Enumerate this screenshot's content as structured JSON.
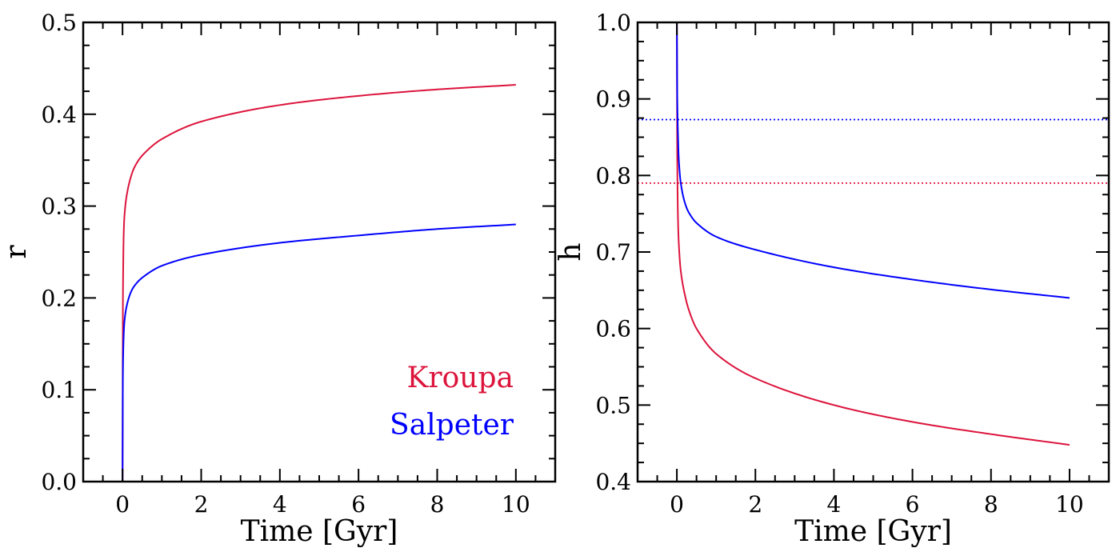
{
  "chart_data": [
    {
      "type": "line",
      "xlabel": "Time [Gyr]",
      "ylabel": "r",
      "xlim": [
        -1,
        11
      ],
      "ylim": [
        0.0,
        0.5
      ],
      "xticks": [
        "0",
        "2",
        "4",
        "6",
        "8",
        "10"
      ],
      "yticks": [
        "0.0",
        "0.1",
        "0.2",
        "0.3",
        "0.4",
        "0.5"
      ],
      "grid": false,
      "legend": {
        "placement": "bottom-right",
        "entries": [
          {
            "label": "Kroupa",
            "color": "#dc143c"
          },
          {
            "label": "Salpeter",
            "color": "#0000ff"
          }
        ]
      },
      "series": [
        {
          "name": "Kroupa",
          "color": "#dc143c",
          "style": "solid",
          "x": [
            0,
            0.01,
            0.03,
            0.05,
            0.1,
            0.2,
            0.3,
            0.5,
            1,
            2,
            4,
            6,
            8,
            10
          ],
          "y": [
            0.0,
            0.2,
            0.27,
            0.29,
            0.31,
            0.33,
            0.342,
            0.355,
            0.373,
            0.392,
            0.41,
            0.42,
            0.427,
            0.432
          ]
        },
        {
          "name": "Salpeter",
          "color": "#0000ff",
          "style": "solid",
          "x": [
            0,
            0.01,
            0.03,
            0.05,
            0.1,
            0.2,
            0.3,
            0.5,
            1,
            2,
            4,
            6,
            8,
            10
          ],
          "y": [
            0.0,
            0.12,
            0.16,
            0.175,
            0.19,
            0.205,
            0.213,
            0.222,
            0.235,
            0.247,
            0.26,
            0.268,
            0.275,
            0.28
          ]
        }
      ]
    },
    {
      "type": "line",
      "xlabel": "Time [Gyr]",
      "ylabel": "h",
      "xlim": [
        -1,
        11
      ],
      "ylim": [
        0.4,
        1.0
      ],
      "xticks": [
        "0",
        "2",
        "4",
        "6",
        "8",
        "10"
      ],
      "yticks": [
        "0.4",
        "0.5",
        "0.6",
        "0.7",
        "0.8",
        "0.9",
        "1.0"
      ],
      "grid": false,
      "series": [
        {
          "color": "#dc143c",
          "style": "solid",
          "x": [
            0,
            0.01,
            0.03,
            0.05,
            0.1,
            0.2,
            0.3,
            0.5,
            1,
            2,
            4,
            6,
            8,
            10
          ],
          "y": [
            1.0,
            0.82,
            0.74,
            0.71,
            0.675,
            0.645,
            0.625,
            0.6,
            0.567,
            0.535,
            0.5,
            0.478,
            0.462,
            0.448
          ]
        },
        {
          "color": "#0000ff",
          "style": "solid",
          "x": [
            0,
            0.01,
            0.03,
            0.05,
            0.1,
            0.2,
            0.3,
            0.5,
            1,
            2,
            4,
            6,
            8,
            10
          ],
          "y": [
            1.0,
            0.9,
            0.85,
            0.82,
            0.79,
            0.765,
            0.752,
            0.738,
            0.72,
            0.703,
            0.68,
            0.664,
            0.651,
            0.64
          ]
        },
        {
          "color": "#0000ff",
          "style": "dotted",
          "hline": 0.873
        },
        {
          "color": "#dc143c",
          "style": "dotted",
          "hline": 0.79
        }
      ]
    }
  ]
}
